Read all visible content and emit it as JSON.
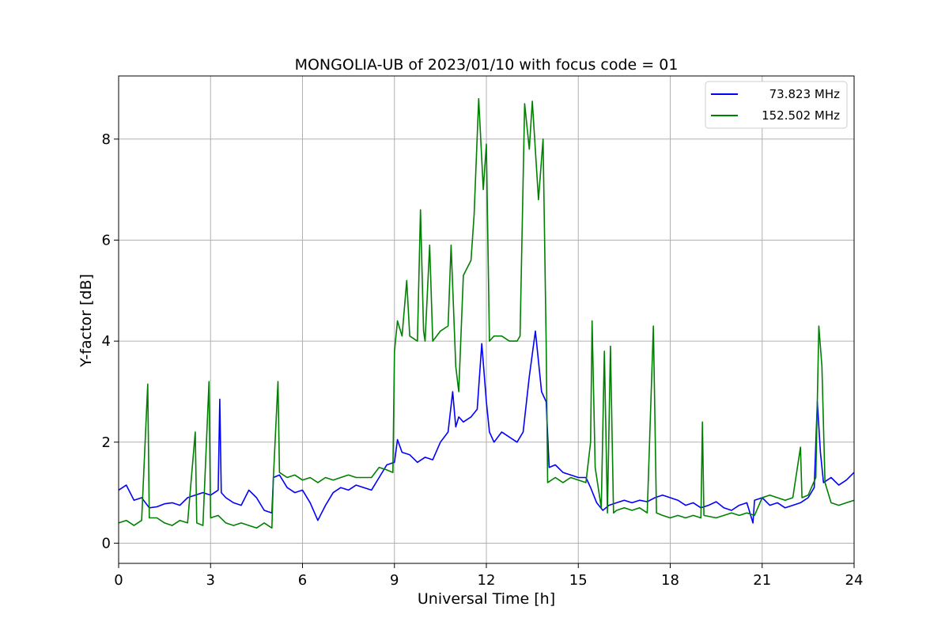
{
  "chart_data": {
    "type": "line",
    "title": "MONGOLIA-UB of 2023/01/10 with focus code = 01",
    "xlabel": "Universal Time [h]",
    "ylabel": "Y-factor [dB]",
    "xlim": [
      0,
      24
    ],
    "ylim": [
      -0.4,
      9.25
    ],
    "xticks": [
      0,
      3,
      6,
      9,
      12,
      15,
      18,
      21,
      24
    ],
    "yticks": [
      0,
      2,
      4,
      6,
      8
    ],
    "xtick_labels": [
      "0",
      "3",
      "6",
      "9",
      "12",
      "15",
      "18",
      "21",
      "24"
    ],
    "ytick_labels": [
      "0",
      "2",
      "4",
      "6",
      "8"
    ],
    "grid": true,
    "legend_position": "top-right",
    "series": [
      {
        "name": "73.823 MHz",
        "color": "#0000ff",
        "points": [
          [
            0.0,
            1.05
          ],
          [
            0.25,
            1.15
          ],
          [
            0.5,
            0.85
          ],
          [
            0.75,
            0.9
          ],
          [
            1.0,
            0.7
          ],
          [
            1.25,
            0.72
          ],
          [
            1.5,
            0.78
          ],
          [
            1.75,
            0.8
          ],
          [
            2.0,
            0.75
          ],
          [
            2.25,
            0.9
          ],
          [
            2.5,
            0.95
          ],
          [
            2.75,
            1.0
          ],
          [
            3.0,
            0.95
          ],
          [
            3.25,
            1.05
          ],
          [
            3.3,
            2.85
          ],
          [
            3.35,
            1.0
          ],
          [
            3.5,
            0.9
          ],
          [
            3.75,
            0.8
          ],
          [
            4.0,
            0.75
          ],
          [
            4.25,
            1.05
          ],
          [
            4.5,
            0.9
          ],
          [
            4.75,
            0.65
          ],
          [
            5.0,
            0.6
          ],
          [
            5.05,
            1.3
          ],
          [
            5.25,
            1.35
          ],
          [
            5.5,
            1.1
          ],
          [
            5.75,
            1.0
          ],
          [
            6.0,
            1.05
          ],
          [
            6.25,
            0.8
          ],
          [
            6.5,
            0.45
          ],
          [
            6.75,
            0.75
          ],
          [
            7.0,
            1.0
          ],
          [
            7.25,
            1.1
          ],
          [
            7.5,
            1.05
          ],
          [
            7.75,
            1.15
          ],
          [
            8.0,
            1.1
          ],
          [
            8.25,
            1.05
          ],
          [
            8.5,
            1.3
          ],
          [
            8.75,
            1.55
          ],
          [
            9.0,
            1.6
          ],
          [
            9.1,
            2.05
          ],
          [
            9.25,
            1.8
          ],
          [
            9.5,
            1.75
          ],
          [
            9.75,
            1.6
          ],
          [
            10.0,
            1.7
          ],
          [
            10.25,
            1.65
          ],
          [
            10.5,
            2.0
          ],
          [
            10.75,
            2.2
          ],
          [
            10.9,
            3.0
          ],
          [
            11.0,
            2.3
          ],
          [
            11.1,
            2.5
          ],
          [
            11.25,
            2.4
          ],
          [
            11.5,
            2.5
          ],
          [
            11.7,
            2.65
          ],
          [
            11.85,
            3.95
          ],
          [
            12.0,
            2.8
          ],
          [
            12.1,
            2.2
          ],
          [
            12.25,
            2.0
          ],
          [
            12.5,
            2.2
          ],
          [
            12.75,
            2.1
          ],
          [
            13.0,
            2.0
          ],
          [
            13.2,
            2.2
          ],
          [
            13.4,
            3.3
          ],
          [
            13.6,
            4.2
          ],
          [
            13.8,
            3.0
          ],
          [
            13.95,
            2.8
          ],
          [
            14.05,
            1.5
          ],
          [
            14.25,
            1.55
          ],
          [
            14.5,
            1.4
          ],
          [
            14.75,
            1.35
          ],
          [
            15.0,
            1.3
          ],
          [
            15.25,
            1.3
          ],
          [
            15.4,
            1.1
          ],
          [
            15.6,
            0.8
          ],
          [
            15.8,
            0.65
          ],
          [
            16.0,
            0.75
          ],
          [
            16.25,
            0.8
          ],
          [
            16.5,
            0.85
          ],
          [
            16.75,
            0.8
          ],
          [
            17.0,
            0.85
          ],
          [
            17.25,
            0.82
          ],
          [
            17.5,
            0.9
          ],
          [
            17.75,
            0.95
          ],
          [
            18.0,
            0.9
          ],
          [
            18.25,
            0.85
          ],
          [
            18.5,
            0.75
          ],
          [
            18.75,
            0.8
          ],
          [
            19.0,
            0.7
          ],
          [
            19.25,
            0.75
          ],
          [
            19.5,
            0.82
          ],
          [
            19.75,
            0.7
          ],
          [
            20.0,
            0.65
          ],
          [
            20.25,
            0.75
          ],
          [
            20.5,
            0.8
          ],
          [
            20.7,
            0.4
          ],
          [
            20.75,
            0.85
          ],
          [
            21.0,
            0.9
          ],
          [
            21.25,
            0.75
          ],
          [
            21.5,
            0.8
          ],
          [
            21.75,
            0.7
          ],
          [
            22.0,
            0.75
          ],
          [
            22.25,
            0.8
          ],
          [
            22.5,
            0.9
          ],
          [
            22.7,
            1.1
          ],
          [
            22.8,
            2.8
          ],
          [
            22.9,
            1.8
          ],
          [
            23.0,
            1.2
          ],
          [
            23.25,
            1.3
          ],
          [
            23.5,
            1.15
          ],
          [
            23.75,
            1.25
          ],
          [
            24.0,
            1.4
          ]
        ]
      },
      {
        "name": "152.502 MHz",
        "color": "#008000",
        "points": [
          [
            0.0,
            0.4
          ],
          [
            0.25,
            0.45
          ],
          [
            0.5,
            0.35
          ],
          [
            0.75,
            0.45
          ],
          [
            0.95,
            3.15
          ],
          [
            1.0,
            0.5
          ],
          [
            1.25,
            0.5
          ],
          [
            1.5,
            0.4
          ],
          [
            1.75,
            0.35
          ],
          [
            2.0,
            0.45
          ],
          [
            2.25,
            0.4
          ],
          [
            2.5,
            2.2
          ],
          [
            2.55,
            0.4
          ],
          [
            2.75,
            0.35
          ],
          [
            2.95,
            3.2
          ],
          [
            3.0,
            0.5
          ],
          [
            3.25,
            0.55
          ],
          [
            3.5,
            0.4
          ],
          [
            3.75,
            0.35
          ],
          [
            4.0,
            0.4
          ],
          [
            4.25,
            0.35
          ],
          [
            4.5,
            0.3
          ],
          [
            4.75,
            0.4
          ],
          [
            5.0,
            0.3
          ],
          [
            5.05,
            1.3
          ],
          [
            5.2,
            3.2
          ],
          [
            5.25,
            1.4
          ],
          [
            5.5,
            1.3
          ],
          [
            5.75,
            1.35
          ],
          [
            6.0,
            1.25
          ],
          [
            6.25,
            1.3
          ],
          [
            6.5,
            1.2
          ],
          [
            6.75,
            1.3
          ],
          [
            7.0,
            1.25
          ],
          [
            7.25,
            1.3
          ],
          [
            7.5,
            1.35
          ],
          [
            7.75,
            1.3
          ],
          [
            8.0,
            1.3
          ],
          [
            8.25,
            1.3
          ],
          [
            8.5,
            1.5
          ],
          [
            8.75,
            1.45
          ],
          [
            8.95,
            1.4
          ],
          [
            9.0,
            3.8
          ],
          [
            9.1,
            4.4
          ],
          [
            9.25,
            4.1
          ],
          [
            9.4,
            5.2
          ],
          [
            9.5,
            4.1
          ],
          [
            9.75,
            4.0
          ],
          [
            9.85,
            6.6
          ],
          [
            9.95,
            4.2
          ],
          [
            10.0,
            4.0
          ],
          [
            10.15,
            5.9
          ],
          [
            10.25,
            4.0
          ],
          [
            10.5,
            4.2
          ],
          [
            10.75,
            4.3
          ],
          [
            10.85,
            5.9
          ],
          [
            11.0,
            3.5
          ],
          [
            11.1,
            3.0
          ],
          [
            11.25,
            5.3
          ],
          [
            11.5,
            5.6
          ],
          [
            11.6,
            6.5
          ],
          [
            11.75,
            8.8
          ],
          [
            11.9,
            7.0
          ],
          [
            12.0,
            7.9
          ],
          [
            12.1,
            4.0
          ],
          [
            12.25,
            4.1
          ],
          [
            12.5,
            4.1
          ],
          [
            12.75,
            4.0
          ],
          [
            13.0,
            4.0
          ],
          [
            13.1,
            4.1
          ],
          [
            13.25,
            8.7
          ],
          [
            13.4,
            7.8
          ],
          [
            13.5,
            8.75
          ],
          [
            13.7,
            6.8
          ],
          [
            13.85,
            8.0
          ],
          [
            13.95,
            4.0
          ],
          [
            14.0,
            1.2
          ],
          [
            14.25,
            1.3
          ],
          [
            14.5,
            1.2
          ],
          [
            14.75,
            1.3
          ],
          [
            15.0,
            1.25
          ],
          [
            15.25,
            1.2
          ],
          [
            15.4,
            2.0
          ],
          [
            15.45,
            4.4
          ],
          [
            15.55,
            1.5
          ],
          [
            15.75,
            0.7
          ],
          [
            15.85,
            3.8
          ],
          [
            15.95,
            0.6
          ],
          [
            16.05,
            3.9
          ],
          [
            16.15,
            0.6
          ],
          [
            16.25,
            0.65
          ],
          [
            16.5,
            0.7
          ],
          [
            16.75,
            0.65
          ],
          [
            17.0,
            0.7
          ],
          [
            17.25,
            0.6
          ],
          [
            17.45,
            4.3
          ],
          [
            17.55,
            0.6
          ],
          [
            17.75,
            0.55
          ],
          [
            18.0,
            0.5
          ],
          [
            18.25,
            0.55
          ],
          [
            18.5,
            0.5
          ],
          [
            18.75,
            0.55
          ],
          [
            19.0,
            0.5
          ],
          [
            19.05,
            2.4
          ],
          [
            19.1,
            0.55
          ],
          [
            19.5,
            0.5
          ],
          [
            19.75,
            0.55
          ],
          [
            20.0,
            0.6
          ],
          [
            20.25,
            0.55
          ],
          [
            20.5,
            0.6
          ],
          [
            20.75,
            0.55
          ],
          [
            21.0,
            0.9
          ],
          [
            21.25,
            0.95
          ],
          [
            21.5,
            0.9
          ],
          [
            21.75,
            0.85
          ],
          [
            22.0,
            0.9
          ],
          [
            22.25,
            1.9
          ],
          [
            22.3,
            0.9
          ],
          [
            22.5,
            0.95
          ],
          [
            22.75,
            1.3
          ],
          [
            22.85,
            4.3
          ],
          [
            22.95,
            3.5
          ],
          [
            23.05,
            1.2
          ],
          [
            23.25,
            0.8
          ],
          [
            23.5,
            0.75
          ],
          [
            23.75,
            0.8
          ],
          [
            24.0,
            0.85
          ]
        ]
      }
    ]
  }
}
